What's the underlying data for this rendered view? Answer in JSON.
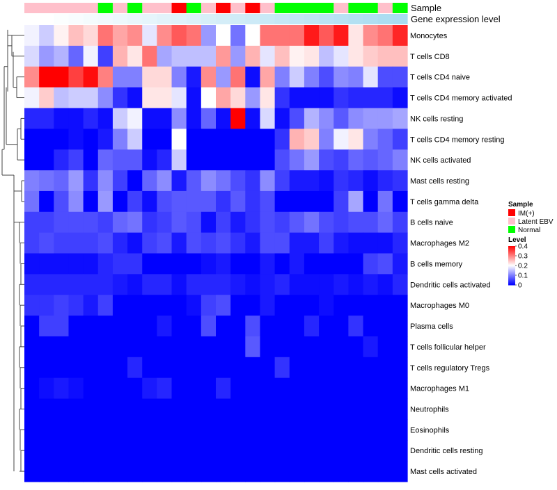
{
  "chart_data": {
    "type": "heatmap",
    "annotation_tracks": [
      {
        "name": "Sample",
        "values": [
          "Latent EBV",
          "Latent EBV",
          "Latent EBV",
          "Latent EBV",
          "Latent EBV",
          "Normal",
          "Latent EBV",
          "Normal",
          "Latent EBV",
          "Latent EBV",
          "IM(+)",
          "Normal",
          "Latent EBV",
          "IM(+)",
          "Latent EBV",
          "IM(+)",
          "Latent EBV",
          "Normal",
          "Normal",
          "Normal",
          "Normal",
          "Latent EBV",
          "Normal",
          "Normal",
          "Latent EBV",
          "Normal"
        ]
      },
      {
        "name": "Gene expression level",
        "values": [
          0,
          0,
          0.03,
          0.06,
          0.09,
          0.12,
          0.15,
          0.18,
          0.21,
          0.24,
          0.27,
          0.3,
          0.33,
          0.36,
          0.39,
          0.42,
          0.45,
          0.48,
          0.51,
          0.54,
          0.57,
          0.6,
          0.63,
          0.66,
          0.69,
          0.72
        ]
      }
    ],
    "rows": [
      "Monocytes",
      "T cells CD8",
      "T cells CD4 naive",
      "T cells CD4 memory activated",
      "NK cells resting",
      "T cells CD4 memory resting",
      "NK cells activated",
      "Mast cells resting",
      "T cells gamma delta",
      "B cells naive",
      "Macrophages M2",
      "B cells memory",
      "Dendritic cells activated",
      "Macrophages M0",
      "Plasma cells",
      "T cells follicular helper",
      "T cells regulatory  Tregs",
      "Macrophages M1",
      "Neutrophils",
      "Eosinophils",
      "Dendritic cells resting",
      "Mast cells activated"
    ],
    "values": [
      [
        0.19,
        0.16,
        0.21,
        0.25,
        0.23,
        0.31,
        0.27,
        0.29,
        0.18,
        0.29,
        0.33,
        0.31,
        0.12,
        0.2,
        0.09,
        0.2,
        0.31,
        0.31,
        0.31,
        0.38,
        0.33,
        0.38,
        0.22,
        0.29,
        0.31,
        0.37
      ],
      [
        0.17,
        0.12,
        0.14,
        0.08,
        0.19,
        0.05,
        0.26,
        0.22,
        0.31,
        0.13,
        0.15,
        0.15,
        0.15,
        0.28,
        0.12,
        0.26,
        0.18,
        0.25,
        0.21,
        0.22,
        0.15,
        0.18,
        0.22,
        0.24,
        0.25,
        0.25
      ],
      [
        0.29,
        0.4,
        0.4,
        0.35,
        0.39,
        0.3,
        0.1,
        0.1,
        0.23,
        0.23,
        0.1,
        0.02,
        0.29,
        0.12,
        0.31,
        0.01,
        0.27,
        0.1,
        0.16,
        0.1,
        0.06,
        0.11,
        0.1,
        0.18,
        0.06,
        0.06
      ],
      [
        0.19,
        0.24,
        0.15,
        0.16,
        0.16,
        0.11,
        0.04,
        0.01,
        0.22,
        0.22,
        0.18,
        0.01,
        0.2,
        0.27,
        0.23,
        0.12,
        0.22,
        0.04,
        0.01,
        0.01,
        0.01,
        0.04,
        0.03,
        0.03,
        0.03,
        0.01
      ],
      [
        0.03,
        0.03,
        0.01,
        0.01,
        0.03,
        0.01,
        0.16,
        0.19,
        0.01,
        0.01,
        0.11,
        0.01,
        0.08,
        0.01,
        0.42,
        0.01,
        0.17,
        0.01,
        0.06,
        0.14,
        0.11,
        0.07,
        0.11,
        0.12,
        0.12,
        0.13
      ],
      [
        0.0,
        0.0,
        0.0,
        0.01,
        0.0,
        0.02,
        0.1,
        0.16,
        0.0,
        0.0,
        0.2,
        0.0,
        0.0,
        0.0,
        0.0,
        0.0,
        0.0,
        0.04,
        0.26,
        0.24,
        0.1,
        0.19,
        0.22,
        0.1,
        0.08,
        0.05
      ],
      [
        0.0,
        0.0,
        0.03,
        0.05,
        0.0,
        0.08,
        0.07,
        0.07,
        0.01,
        0.03,
        0.16,
        0.0,
        0.0,
        0.0,
        0.0,
        0.0,
        0.0,
        0.06,
        0.09,
        0.12,
        0.06,
        0.05,
        0.08,
        0.07,
        0.08,
        0.1
      ],
      [
        0.1,
        0.09,
        0.08,
        0.12,
        0.04,
        0.11,
        0.05,
        0.0,
        0.08,
        0.11,
        0.02,
        0.07,
        0.11,
        0.09,
        0.06,
        0.04,
        0.11,
        0.05,
        0.02,
        0.02,
        0.01,
        0.04,
        0.03,
        0.01,
        0.03,
        0.04
      ],
      [
        0.09,
        0.0,
        0.06,
        0.11,
        0.0,
        0.12,
        0.0,
        0.05,
        0.01,
        0.06,
        0.07,
        0.07,
        0.07,
        0.04,
        0.07,
        0.04,
        0.06,
        0.0,
        0.0,
        0.0,
        0.0,
        0.05,
        0.13,
        0.0,
        0.09,
        0.0
      ],
      [
        0.05,
        0.05,
        0.06,
        0.06,
        0.06,
        0.05,
        0.08,
        0.09,
        0.04,
        0.05,
        0.07,
        0.06,
        0.01,
        0.05,
        0.02,
        0.04,
        0.06,
        0.05,
        0.07,
        0.09,
        0.06,
        0.05,
        0.06,
        0.06,
        0.08,
        0.05
      ],
      [
        0.05,
        0.06,
        0.05,
        0.05,
        0.05,
        0.06,
        0.03,
        0.01,
        0.05,
        0.06,
        0.02,
        0.06,
        0.05,
        0.06,
        0.04,
        0.02,
        0.06,
        0.06,
        0.02,
        0.02,
        0.05,
        0.02,
        0.01,
        0.01,
        0.01,
        0.03
      ],
      [
        0.01,
        0.01,
        0.01,
        0.01,
        0.01,
        0.03,
        0.04,
        0.04,
        0.0,
        0.0,
        0.0,
        0.0,
        0.01,
        0.02,
        0.0,
        0.0,
        0.02,
        0.0,
        0.02,
        0.0,
        0.0,
        0.0,
        0.0,
        0.05,
        0.06,
        0.02
      ],
      [
        0.03,
        0.03,
        0.03,
        0.03,
        0.03,
        0.03,
        0.02,
        0.01,
        0.03,
        0.03,
        0.01,
        0.03,
        0.03,
        0.03,
        0.02,
        0.01,
        0.02,
        0.03,
        0.01,
        0.01,
        0.01,
        0.02,
        0.01,
        0.02,
        0.01,
        0.03
      ],
      [
        0.04,
        0.04,
        0.05,
        0.04,
        0.02,
        0.05,
        0.0,
        0.0,
        0.0,
        0.0,
        0.0,
        0.01,
        0.05,
        0.06,
        0.0,
        0.0,
        0.02,
        0.0,
        0.0,
        0.0,
        0.01,
        0.0,
        0.0,
        0.0,
        0.0,
        0.0
      ],
      [
        0.0,
        0.05,
        0.05,
        0.0,
        0.0,
        0.0,
        0.0,
        0.0,
        0.0,
        0.02,
        0.0,
        0.0,
        0.06,
        0.0,
        0.0,
        0.06,
        0.0,
        0.0,
        0.0,
        0.03,
        0.0,
        0.0,
        0.04,
        0.0,
        0.0,
        0.0
      ],
      [
        0.0,
        0.0,
        0.0,
        0.0,
        0.0,
        0.0,
        0.0,
        0.0,
        0.0,
        0.0,
        0.0,
        0.0,
        0.0,
        0.0,
        0.0,
        0.07,
        0.0,
        0.0,
        0.0,
        0.0,
        0.0,
        0.0,
        0.0,
        0.02,
        0.0,
        0.0
      ],
      [
        0.0,
        0.0,
        0.0,
        0.0,
        0.0,
        0.0,
        0.0,
        0.03,
        0.0,
        0.0,
        0.0,
        0.0,
        0.0,
        0.0,
        0.0,
        0.0,
        0.0,
        0.04,
        0.0,
        0.0,
        0.0,
        0.0,
        0.0,
        0.0,
        0.0,
        0.0
      ],
      [
        0.0,
        0.01,
        0.02,
        0.01,
        0.0,
        0.0,
        0.0,
        0.0,
        0.02,
        0.03,
        0.0,
        0.0,
        0.0,
        0.03,
        0.0,
        0.0,
        0.0,
        0.0,
        0.0,
        0.0,
        0.0,
        0.0,
        0.0,
        0.0,
        0.0,
        0.0
      ],
      [
        0.0,
        0.0,
        0.0,
        0.0,
        0.0,
        0.0,
        0.0,
        0.0,
        0.0,
        0.0,
        0.0,
        0.0,
        0.0,
        0.0,
        0.0,
        0.0,
        0.0,
        0.0,
        0.0,
        0.0,
        0.0,
        0.0,
        0.0,
        0.0,
        0.0,
        0.0
      ],
      [
        0.0,
        0.0,
        0.0,
        0.0,
        0.0,
        0.0,
        0.0,
        0.0,
        0.0,
        0.0,
        0.0,
        0.0,
        0.0,
        0.0,
        0.0,
        0.0,
        0.0,
        0.0,
        0.0,
        0.0,
        0.0,
        0.0,
        0.0,
        0.0,
        0.0,
        0.0
      ],
      [
        0.0,
        0.0,
        0.0,
        0.0,
        0.0,
        0.0,
        0.0,
        0.0,
        0.0,
        0.0,
        0.0,
        0.0,
        0.0,
        0.0,
        0.0,
        0.0,
        0.0,
        0.0,
        0.0,
        0.0,
        0.0,
        0.0,
        0.0,
        0.0,
        0.0,
        0.0
      ],
      [
        0.0,
        0.0,
        0.0,
        0.0,
        0.0,
        0.0,
        0.0,
        0.0,
        0.0,
        0.0,
        0.0,
        0.0,
        0.0,
        0.0,
        0.0,
        0.0,
        0.0,
        0.0,
        0.0,
        0.0,
        0.0,
        0.0,
        0.0,
        0.0,
        0.0,
        0.0
      ]
    ],
    "color_scale": {
      "low": "#0000ff",
      "mid": "#ffffff",
      "high": "#ff0000",
      "range": [
        0,
        0.4
      ],
      "midpoint": 0.2
    },
    "legend": {
      "sample_title": "Sample",
      "sample_items": [
        {
          "label": "IM(+)",
          "color": "#ff0000"
        },
        {
          "label": "Latent EBV",
          "color": "#ffc0cb"
        },
        {
          "label": "Normal",
          "color": "#00ff00"
        }
      ],
      "level_title": "Level",
      "level_ticks": [
        0.4,
        0.3,
        0.2,
        0.1,
        0
      ],
      "placement": "right"
    },
    "track_colors": {
      "expr_low": "#ffffff",
      "expr_high": "#87ceeb"
    },
    "dendrogram": "rows"
  }
}
